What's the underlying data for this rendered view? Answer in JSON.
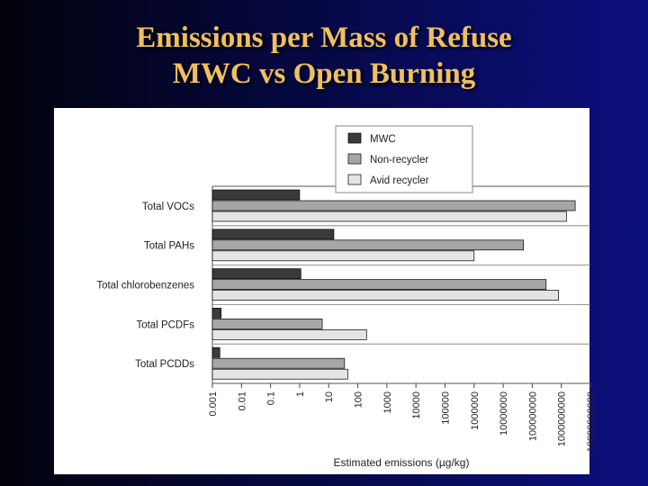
{
  "slide": {
    "title_line1": "Emissions per Mass of Refuse",
    "title_line2": "MWC vs Open Burning"
  },
  "colors": {
    "title": "#f0c060",
    "background_left": "#02020c",
    "background_right": "#0b0f7e",
    "mwc": "#3a3a3a",
    "non_recycler": "#a6a6a6",
    "avid_recycler": "#e4e4e4"
  },
  "chart_data": {
    "type": "bar",
    "orientation": "horizontal",
    "x_scale": "log",
    "xlabel": "Estimated emissions  (µg/kg)",
    "xlim": [
      0.001,
      10000000000
    ],
    "x_ticks": [
      "0.001",
      "0.01",
      "0.1",
      "1",
      "10",
      "100",
      "1000",
      "10000",
      "100000",
      "1000000",
      "10000000",
      "100000000",
      "1000000000",
      "10000000000"
    ],
    "categories": [
      "Total VOCs",
      "Total PAHs",
      "Total chlorobenzenes",
      "Total PCDFs",
      "Total PCDDs"
    ],
    "series": [
      {
        "name": "MWC",
        "values": [
          1,
          15,
          1.1,
          0.002,
          0.0018
        ]
      },
      {
        "name": "Non-recycler",
        "values": [
          3000000000,
          50000000,
          300000000,
          6,
          35
        ]
      },
      {
        "name": "Avid recycler",
        "values": [
          1500000000,
          1000000,
          800000000,
          200,
          45
        ]
      }
    ],
    "legend_position": "top-right",
    "grid": false
  }
}
